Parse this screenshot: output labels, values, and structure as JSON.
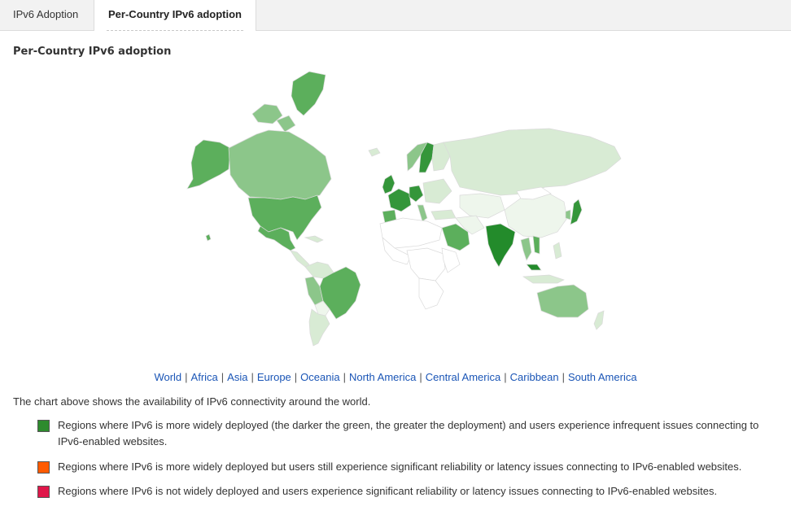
{
  "tabs": [
    {
      "label": "IPv6 Adoption",
      "active": false
    },
    {
      "label": "Per-Country IPv6 adoption",
      "active": true
    }
  ],
  "heading": "Per-Country IPv6 adoption",
  "region_links": [
    "World",
    "Africa",
    "Asia",
    "Europe",
    "Oceania",
    "North America",
    "Central America",
    "Caribbean",
    "South America"
  ],
  "separator": "|",
  "description": "The chart above shows the availability of IPv6 connectivity around the world.",
  "legend": [
    {
      "color": "#2e8b2e",
      "text": "Regions where IPv6 is more widely deployed (the darker the green, the greater the deployment) and users experience infrequent issues connecting to IPv6-enabled websites."
    },
    {
      "color": "#ff5a00",
      "text": "Regions where IPv6 is more widely deployed but users still experience significant reliability or latency issues connecting to IPv6-enabled websites."
    },
    {
      "color": "#e0174a",
      "text": "Regions where IPv6 is not widely deployed and users experience significant reliability or latency issues connecting to IPv6-enabled websites."
    }
  ],
  "map_colors": {
    "none": "#ffffff",
    "very_light": "#eef6ec",
    "light": "#d8ebd4",
    "medium": "#8cc68a",
    "strong": "#5caf5c",
    "dark": "#34963a",
    "darkest": "#238b2b",
    "border": "#dadada"
  }
}
